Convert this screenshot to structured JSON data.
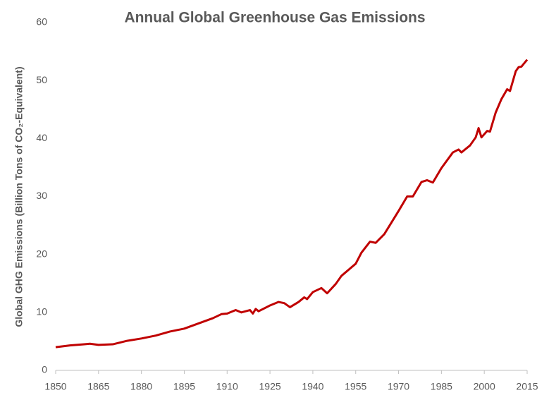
{
  "chart_data": {
    "type": "line",
    "title": "Annual Global Greenhouse Gas Emissions",
    "y_label": "Global GHG Emissions (Billion Tons of CO₂-Equivalent)",
    "x": [
      1850,
      1855,
      1860,
      1862,
      1865,
      1870,
      1875,
      1880,
      1885,
      1890,
      1895,
      1900,
      1905,
      1908,
      1910,
      1913,
      1915,
      1918,
      1919,
      1920,
      1921,
      1925,
      1928,
      1930,
      1932,
      1935,
      1937,
      1938,
      1940,
      1943,
      1945,
      1948,
      1950,
      1955,
      1957,
      1960,
      1962,
      1965,
      1970,
      1973,
      1975,
      1978,
      1980,
      1982,
      1985,
      1989,
      1991,
      1992,
      1995,
      1997,
      1998,
      1999,
      2001,
      2002,
      2004,
      2006,
      2008,
      2009,
      2011,
      2012,
      2013,
      2015
    ],
    "series": [
      {
        "name": "Emissions",
        "color": "#c00000",
        "values": [
          4.0,
          4.3,
          4.5,
          4.6,
          4.4,
          4.5,
          5.1,
          5.5,
          6.0,
          6.7,
          7.2,
          8.1,
          9.0,
          9.7,
          9.8,
          10.4,
          10.0,
          10.4,
          9.8,
          10.6,
          10.2,
          11.2,
          11.8,
          11.6,
          10.9,
          11.8,
          12.6,
          12.3,
          13.5,
          14.2,
          13.3,
          14.9,
          16.3,
          18.4,
          20.3,
          22.2,
          22.0,
          23.5,
          27.5,
          30.0,
          30.0,
          32.5,
          32.8,
          32.4,
          34.9,
          37.6,
          38.1,
          37.6,
          38.8,
          40.2,
          41.8,
          40.2,
          41.3,
          41.2,
          44.5,
          46.8,
          48.5,
          48.2,
          51.6,
          52.3,
          52.4,
          53.6
        ]
      }
    ],
    "xlim": [
      1850,
      2015
    ],
    "xticks": [
      1850,
      1865,
      1880,
      1895,
      1910,
      1925,
      1940,
      1955,
      1970,
      1985,
      2000,
      2015
    ],
    "ylim": [
      0,
      60
    ],
    "yticks": [
      0,
      10,
      20,
      30,
      40,
      50,
      60
    ],
    "grid": false
  }
}
